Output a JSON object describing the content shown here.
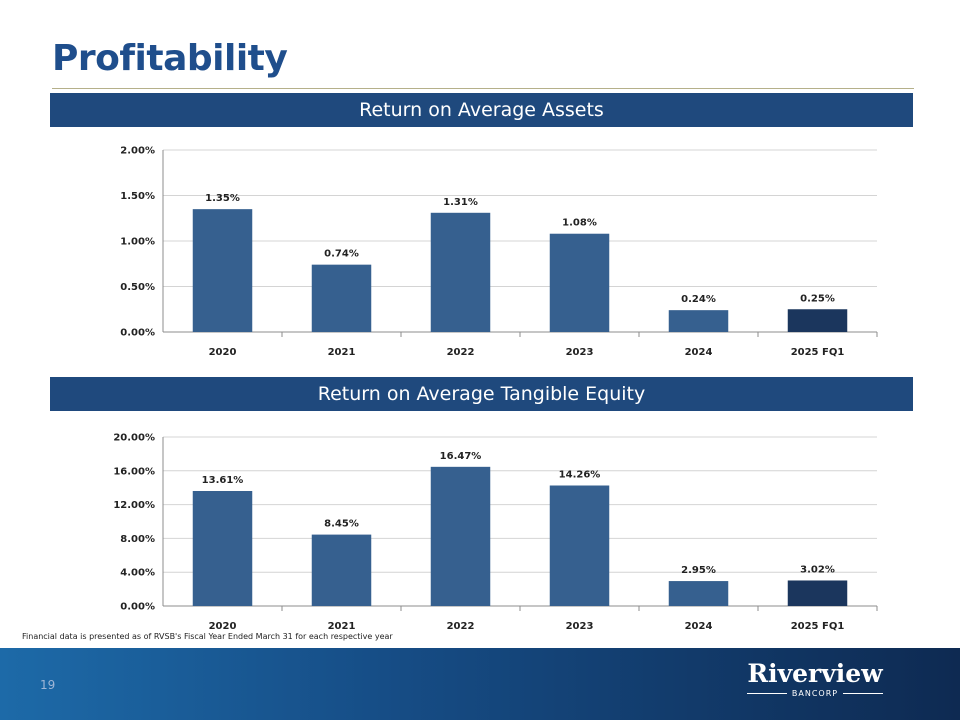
{
  "page": {
    "title": "Profitability",
    "footnote": "Financial data is presented as of RVSB's Fiscal Year Ended March 31 for each respective year",
    "page_number": "19",
    "logo": {
      "name": "Riverview",
      "sub": "BANCORP"
    }
  },
  "colors": {
    "bar": "#36608f",
    "bar_highlight": "#1b365d",
    "section": "#1f497d",
    "title": "#1f4e8c"
  },
  "chart_data": [
    {
      "type": "bar",
      "title": "Return on Average Assets",
      "categories": [
        "2020",
        "2021",
        "2022",
        "2023",
        "2024",
        "2025 FQ1"
      ],
      "values": [
        1.35,
        0.74,
        1.31,
        1.08,
        0.24,
        0.25
      ],
      "value_labels": [
        "1.35%",
        "0.74%",
        "1.31%",
        "1.08%",
        "0.24%",
        "0.25%"
      ],
      "ylim": [
        0,
        2
      ],
      "yticks": [
        0,
        0.5,
        1,
        1.5,
        2
      ],
      "ytick_labels": [
        "0.00%",
        "0.50%",
        "1.00%",
        "1.50%",
        "2.00%"
      ],
      "highlight_index": 5,
      "grid": true,
      "xlabel": "",
      "ylabel": ""
    },
    {
      "type": "bar",
      "title": "Return on Average Tangible Equity",
      "categories": [
        "2020",
        "2021",
        "2022",
        "2023",
        "2024",
        "2025 FQ1"
      ],
      "values": [
        13.61,
        8.45,
        16.47,
        14.26,
        2.95,
        3.02
      ],
      "value_labels": [
        "13.61%",
        "8.45%",
        "16.47%",
        "14.26%",
        "2.95%",
        "3.02%"
      ],
      "ylim": [
        0,
        20
      ],
      "yticks": [
        0,
        4,
        8,
        12,
        16,
        20
      ],
      "ytick_labels": [
        "0.00%",
        "4.00%",
        "8.00%",
        "12.00%",
        "16.00%",
        "20.00%"
      ],
      "highlight_index": 5,
      "grid": true,
      "xlabel": "",
      "ylabel": ""
    }
  ]
}
